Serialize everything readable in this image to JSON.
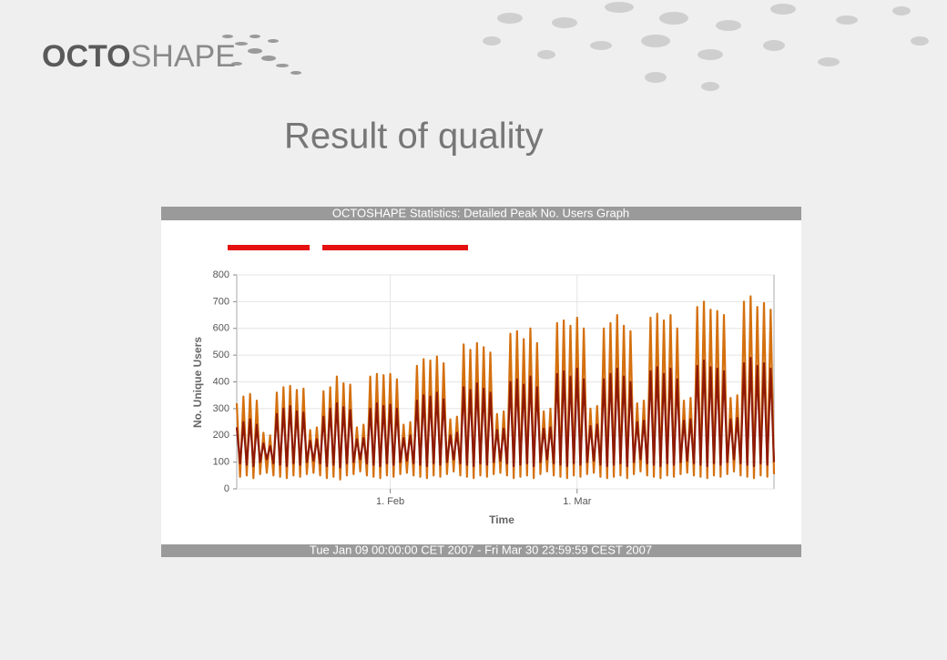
{
  "header": {
    "logo_left": "OCTO",
    "logo_right": "SHAPE"
  },
  "slide_title": "Result of quality",
  "chart_data": {
    "type": "line",
    "title": "OCTOSHAPE Statistics: Detailed Peak No. Users Graph",
    "subtitle": "Tue Jan 09 00:00:00 CET 2007 - Fri Mar 30 23:59:59 CEST 2007",
    "x_label": "Time",
    "y_label": "No. Unique Users",
    "categories": [
      null,
      null,
      null,
      null,
      null,
      null,
      null,
      null,
      null,
      null,
      null,
      null,
      null,
      null,
      null,
      null,
      null,
      null,
      null,
      null,
      null,
      null,
      null,
      null,
      null,
      null,
      null,
      null,
      null,
      null,
      null,
      null,
      null,
      null,
      null,
      null,
      null,
      null,
      null,
      null,
      null,
      null,
      null,
      null,
      null,
      null,
      "1. Feb",
      null,
      null,
      null,
      null,
      null,
      null,
      null,
      null,
      null,
      null,
      null,
      null,
      null,
      null,
      null,
      null,
      null,
      null,
      null,
      null,
      null,
      null,
      null,
      null,
      null,
      null,
      null,
      null,
      null,
      null,
      null,
      null,
      null,
      null,
      null,
      null,
      null,
      null,
      null,
      null,
      null,
      null,
      null,
      null,
      null,
      null,
      null,
      null,
      null,
      null,
      null,
      null,
      null,
      null,
      null,
      "1. Mar",
      null,
      null,
      null,
      null,
      null,
      null,
      null,
      null,
      null,
      null,
      null,
      null,
      null,
      null,
      null,
      null,
      null,
      null,
      null,
      null,
      null,
      null,
      null,
      null,
      null,
      null,
      null,
      null,
      null,
      null,
      null,
      null,
      null,
      null,
      null,
      null,
      null,
      null,
      null,
      null,
      null,
      null,
      null,
      null,
      null,
      null,
      null,
      null,
      null,
      null,
      null,
      null,
      null,
      null,
      null,
      null,
      null,
      null,
      null
    ],
    "series": [
      {
        "color": "#d4700f",
        "values": [
          320,
          45,
          345,
          50,
          355,
          40,
          330,
          55,
          210,
          60,
          200,
          50,
          360,
          45,
          380,
          40,
          385,
          50,
          370,
          45,
          375,
          55,
          220,
          60,
          230,
          50,
          365,
          40,
          380,
          45,
          420,
          35,
          395,
          50,
          390,
          55,
          230,
          65,
          240,
          50,
          420,
          45,
          430,
          40,
          425,
          50,
          430,
          45,
          410,
          55,
          240,
          60,
          250,
          50,
          460,
          45,
          485,
          40,
          480,
          50,
          495,
          45,
          470,
          55,
          260,
          65,
          270,
          50,
          540,
          45,
          520,
          40,
          545,
          50,
          530,
          45,
          510,
          55,
          280,
          60,
          290,
          50,
          580,
          40,
          590,
          45,
          560,
          50,
          600,
          40,
          545,
          55,
          290,
          65,
          300,
          50,
          620,
          45,
          630,
          40,
          610,
          50,
          640,
          45,
          600,
          55,
          300,
          60,
          310,
          45,
          600,
          40,
          620,
          45,
          650,
          50,
          610,
          40,
          590,
          55,
          320,
          65,
          330,
          50,
          640,
          45,
          655,
          40,
          630,
          50,
          650,
          45,
          600,
          55,
          330,
          60,
          340,
          50,
          680,
          45,
          700,
          40,
          670,
          50,
          665,
          45,
          650,
          55,
          340,
          65,
          350,
          50,
          700,
          45,
          720,
          40,
          680,
          50,
          695,
          45,
          670,
          55
        ]
      },
      {
        "color": "#8e1a08",
        "values": [
          230,
          95,
          250,
          90,
          260,
          85,
          240,
          100,
          170,
          110,
          160,
          95,
          280,
          90,
          300,
          85,
          310,
          95,
          290,
          90,
          285,
          100,
          180,
          105,
          185,
          95,
          270,
          85,
          300,
          90,
          320,
          80,
          305,
          95,
          295,
          100,
          185,
          110,
          190,
          95,
          300,
          90,
          320,
          85,
          310,
          95,
          315,
          90,
          300,
          100,
          190,
          105,
          200,
          95,
          330,
          90,
          350,
          85,
          345,
          95,
          360,
          90,
          335,
          100,
          200,
          110,
          210,
          95,
          380,
          90,
          370,
          85,
          395,
          95,
          375,
          90,
          360,
          100,
          220,
          105,
          225,
          95,
          400,
          85,
          410,
          90,
          390,
          95,
          420,
          85,
          380,
          100,
          225,
          110,
          230,
          95,
          430,
          90,
          440,
          85,
          420,
          95,
          450,
          90,
          410,
          100,
          235,
          105,
          240,
          90,
          410,
          85,
          430,
          90,
          450,
          95,
          420,
          85,
          400,
          100,
          250,
          110,
          255,
          95,
          440,
          90,
          455,
          85,
          430,
          95,
          450,
          90,
          410,
          100,
          255,
          105,
          260,
          95,
          460,
          90,
          480,
          85,
          455,
          95,
          450,
          90,
          440,
          100,
          260,
          110,
          265,
          95,
          470,
          90,
          490,
          85,
          460,
          95,
          470,
          90,
          450,
          100
        ]
      }
    ],
    "ylim": [
      0,
      800
    ],
    "yticks": [
      0,
      100,
      200,
      300,
      400,
      500,
      600,
      700,
      800
    ],
    "grid": true
  }
}
